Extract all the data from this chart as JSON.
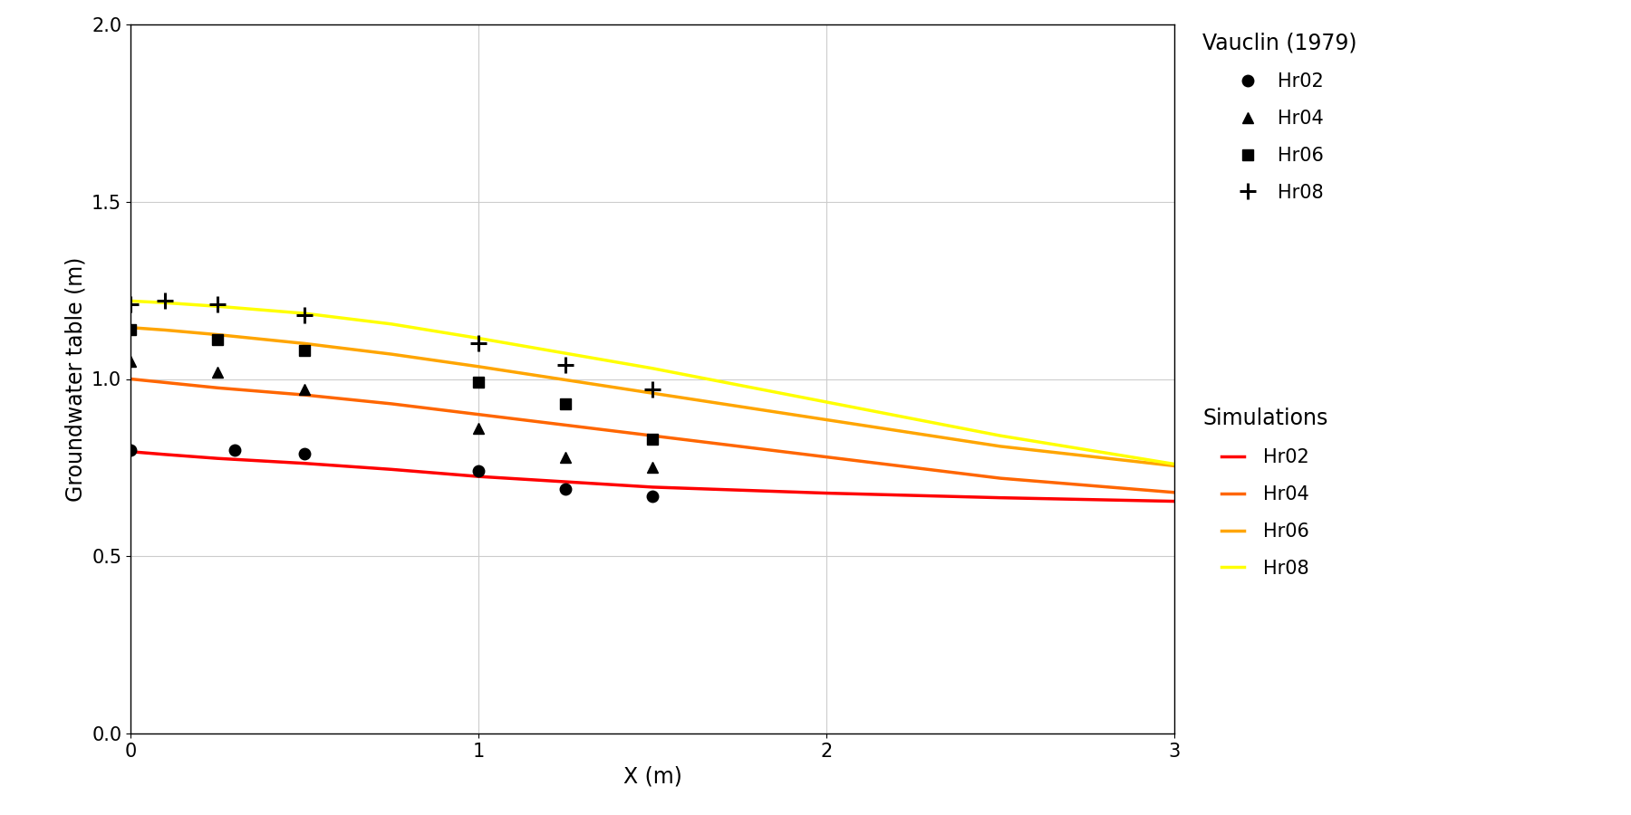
{
  "xlabel": "X (m)",
  "ylabel": "Groundwater table (m)",
  "xlim": [
    0,
    3
  ],
  "ylim": [
    0.0,
    2.0
  ],
  "xticks": [
    0,
    1,
    2,
    3
  ],
  "yticks": [
    0.0,
    0.5,
    1.0,
    1.5,
    2.0
  ],
  "background_color": "#ffffff",
  "grid_color": "#cccccc",
  "vauclin_Hr02": {
    "x": [
      0.0,
      0.3,
      0.5,
      1.0,
      1.25,
      1.5
    ],
    "y": [
      0.8,
      0.8,
      0.79,
      0.74,
      0.69,
      0.67
    ],
    "marker": "o",
    "color": "black",
    "label": "Hr02",
    "markersize": 9
  },
  "vauclin_Hr04": {
    "x": [
      0.0,
      0.25,
      0.5,
      1.0,
      1.25,
      1.5
    ],
    "y": [
      1.05,
      1.02,
      0.97,
      0.86,
      0.78,
      0.75
    ],
    "marker": "^",
    "color": "black",
    "label": "Hr04",
    "markersize": 9
  },
  "vauclin_Hr06": {
    "x": [
      0.0,
      0.25,
      0.5,
      1.0,
      1.25,
      1.5
    ],
    "y": [
      1.14,
      1.11,
      1.08,
      0.99,
      0.93,
      0.83
    ],
    "marker": "s",
    "color": "black",
    "label": "Hr06",
    "markersize": 9
  },
  "vauclin_Hr08": {
    "x": [
      0.0,
      0.1,
      0.25,
      0.5,
      1.0,
      1.25,
      1.5
    ],
    "y": [
      1.21,
      1.22,
      1.21,
      1.18,
      1.1,
      1.04,
      0.97
    ],
    "marker": "+",
    "color": "black",
    "label": "Hr08",
    "markersize": 13
  },
  "sim_Hr02": {
    "x": [
      0.0,
      0.1,
      0.25,
      0.5,
      0.75,
      1.0,
      1.5,
      2.0,
      2.5,
      3.0
    ],
    "y": [
      0.795,
      0.787,
      0.776,
      0.762,
      0.745,
      0.725,
      0.695,
      0.678,
      0.665,
      0.655
    ],
    "color": "#FF0000",
    "label": "Hr02",
    "linewidth": 2.5
  },
  "sim_Hr04": {
    "x": [
      0.0,
      0.1,
      0.25,
      0.5,
      0.75,
      1.0,
      1.5,
      2.0,
      2.5,
      3.0
    ],
    "y": [
      1.0,
      0.99,
      0.975,
      0.955,
      0.93,
      0.9,
      0.84,
      0.78,
      0.72,
      0.68
    ],
    "color": "#FF6600",
    "label": "Hr04",
    "linewidth": 2.5
  },
  "sim_Hr06": {
    "x": [
      0.0,
      0.1,
      0.25,
      0.5,
      0.75,
      1.0,
      1.5,
      2.0,
      2.5,
      3.0
    ],
    "y": [
      1.145,
      1.138,
      1.125,
      1.1,
      1.07,
      1.035,
      0.96,
      0.885,
      0.81,
      0.755
    ],
    "color": "#FFA500",
    "label": "Hr06",
    "linewidth": 2.5
  },
  "sim_Hr08": {
    "x": [
      0.0,
      0.1,
      0.25,
      0.5,
      0.75,
      1.0,
      1.5,
      2.0,
      2.5,
      3.0
    ],
    "y": [
      1.22,
      1.215,
      1.205,
      1.185,
      1.155,
      1.115,
      1.03,
      0.935,
      0.84,
      0.76
    ],
    "color": "#FFFF00",
    "label": "Hr08",
    "linewidth": 2.5
  },
  "legend_vauclin_title": "Vauclin (1979)",
  "legend_sim_title": "Simulations",
  "legend_title_fontsize": 17,
  "legend_item_fontsize": 15,
  "axis_label_fontsize": 17,
  "tick_fontsize": 15
}
